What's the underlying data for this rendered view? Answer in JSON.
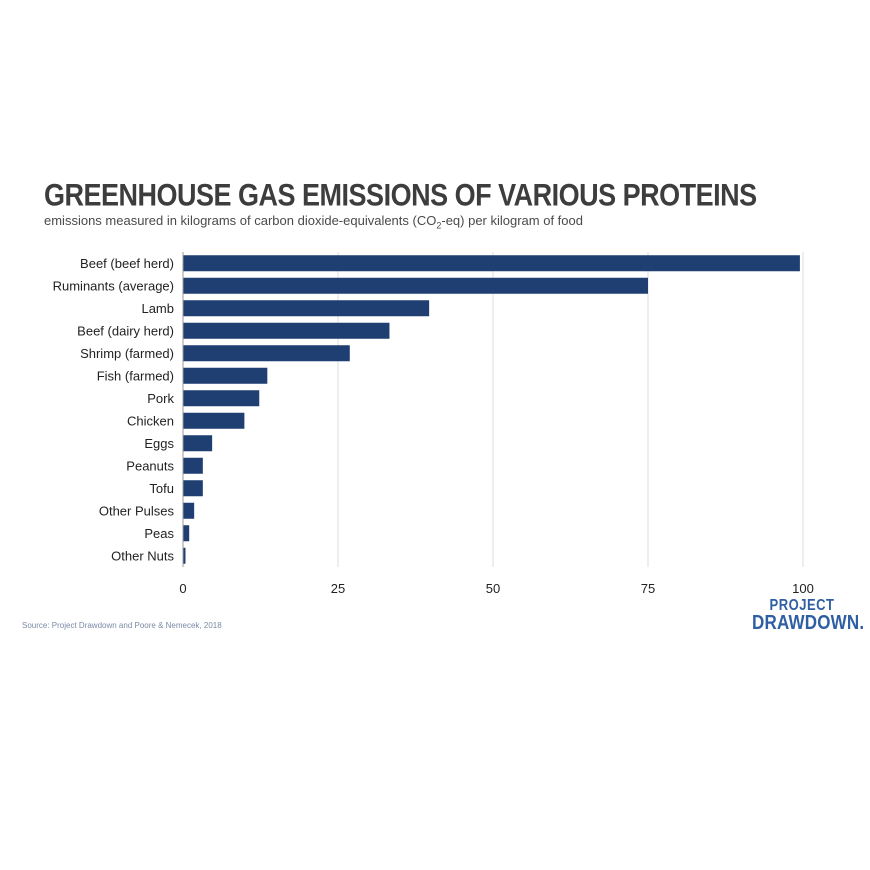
{
  "title": "GREENHOUSE GAS EMISSIONS OF VARIOUS PROTEINS",
  "subtitle_before": "emissions measured in kilograms of carbon dioxide-equivalents (CO",
  "subtitle_sub": "2",
  "subtitle_after": "-eq) per kilogram of food",
  "source": "Source: Project Drawdown and Poore & Nemecek, 2018",
  "logo": {
    "line1": "PROJECT",
    "line2": "DRAWDOWN."
  },
  "colors": {
    "bar": "#1f3f73",
    "grid": "#dddddd",
    "axis": "#999999",
    "logo": "#2f5fa3"
  },
  "chart_data": {
    "type": "bar",
    "orientation": "horizontal",
    "categories": [
      "Beef (beef herd)",
      "Ruminants (average)",
      "Lamb",
      "Beef (dairy herd)",
      "Shrimp (farmed)",
      "Fish (farmed)",
      "Pork",
      "Chicken",
      "Eggs",
      "Peanuts",
      "Tofu",
      "Other Pulses",
      "Peas",
      "Other Nuts"
    ],
    "values": [
      99.5,
      75,
      39.7,
      33.3,
      26.9,
      13.6,
      12.3,
      9.9,
      4.7,
      3.2,
      3.2,
      1.8,
      1.0,
      0.4
    ],
    "xlim": [
      0,
      100
    ],
    "xticks": [
      0,
      25,
      50,
      75,
      100
    ],
    "xtick_labels": [
      "0",
      "25",
      "50",
      "75",
      "100"
    ],
    "grid": "vertical",
    "legend": "none"
  }
}
